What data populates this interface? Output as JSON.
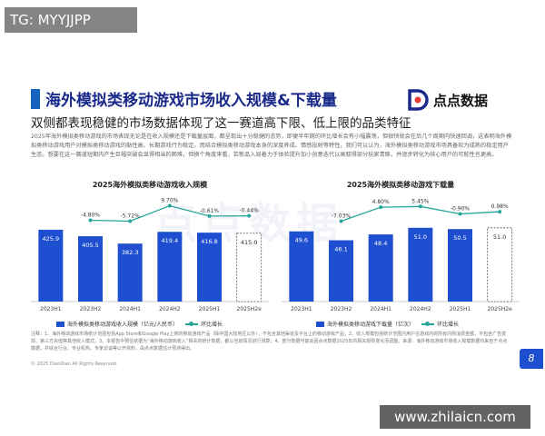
{
  "watermark_tag": "TG: MYYJJPP",
  "header": {
    "title": "海外模拟类移动游戏市场收入规模&下载量",
    "subtitle": "双侧都表现稳健的市场数据体现了这一赛道高下限、低上限的品类特征",
    "logo_text": "点点数据"
  },
  "description": "2025年海外模拟类移动游戏的市场表现无论是在收入规模还是下载量层面，都呈现出十分稳健的态势，即便半年期的环比增长会有小幅震荡，但很快就会在后几个周期内快速回调，这表明海外模拟类移动游戏用户对模拟类移动游戏的黏性高、长期游戏行为稳定。而结合模拟类移动游戏本身的深度养成、情感投射等特性，我们可以认为，海外模拟类移动游戏市场具备较为成熟的稳定用户生态。想要在这一赛道短期内产生巨幅突破会显得相当的困难，但换个角度来看，若新品入局着力于体验提升加小创意迭代以高取得部分玩家青睐，并逐步转化为核心用户的可能性也更高。",
  "background_watermark": "点点数据",
  "chart_data": [
    {
      "type": "bar",
      "title": "2025海外模拟类移动游戏收入规模",
      "categories": [
        "2023H1",
        "2023H2",
        "2024H1",
        "2024H2",
        "2025H1",
        "2025H2e"
      ],
      "series": [
        {
          "name": "海外模拟类移动游戏收入规模（亿元/人民币）",
          "type": "bar",
          "values": [
            425.9,
            405.5,
            382.3,
            419.4,
            416.8,
            415.0
          ],
          "estimated_last": true
        },
        {
          "name": "环比增长",
          "type": "line",
          "values": [
            null,
            -4.8,
            -5.72,
            9.7,
            -0.61,
            -0.44
          ],
          "labels": [
            "",
            "-4.80%",
            "-5.72%",
            "9.70%",
            "-0.61%",
            "-0.44%"
          ]
        }
      ],
      "bar_labels": [
        "425.9",
        "405.5",
        "382.3",
        "419.4",
        "416.8",
        "415.0"
      ],
      "grid": false,
      "legend_position": "bottom",
      "colors": {
        "bar": "#1e4fd0",
        "line": "#26a69a",
        "estimate_border": "#555555"
      }
    },
    {
      "type": "bar",
      "title": "2025海外模拟类移动游戏下载量",
      "categories": [
        "2023H1",
        "2023H2",
        "2024H1",
        "2024H2",
        "2025H1",
        "2025H2e"
      ],
      "series": [
        {
          "name": "海外模拟类移动游戏下载量（亿次）",
          "type": "bar",
          "values": [
            49.6,
            46.1,
            48.4,
            51.0,
            50.5,
            51.0
          ],
          "estimated_last": true
        },
        {
          "name": "环比增长",
          "type": "line",
          "values": [
            null,
            -7.03,
            4.8,
            5.45,
            -0.9,
            0.98
          ],
          "labels": [
            "",
            "-7.03%",
            "4.80%",
            "5.45%",
            "-0.90%",
            "0.98%"
          ]
        }
      ],
      "bar_labels": [
        "49.6",
        "46.1",
        "48.4",
        "51.0",
        "50.5",
        "51.0"
      ],
      "grid": false,
      "legend_position": "bottom",
      "colors": {
        "bar": "#1e4fd0",
        "line": "#26a69a",
        "estimate_border": "#555555"
      }
    }
  ],
  "notes": "注释：1、海外移动游戏市场统计范围包括App Store和Google Play上架的移动游戏产品（除中国大陆地区以外），不包含其他渠道及平台上的移动游戏产品；2、收入规模包括统计范围内用户在游戏内的所有内购消费金额，不包含广告变现、第三方充值等其他收入模式；3、本报告中预估依据为“海外移动游戏收入”相关的统计数据，都以当前情况进行测算；4、部分数据可能会因点点数据2025年的相关规则变化而调整。来源：海外移动游戏市场收入规模数据均来自于点点数据，并综合行业、专业机构、专家访谈等公开资料，由点点数据估计预测得出。",
  "copyright": "© 2025 DianDian All Rights Reserved.",
  "page_number": "8",
  "site_watermark": "www.zhilaicn.com"
}
